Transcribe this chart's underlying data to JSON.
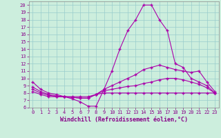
{
  "xlabel": "Windchill (Refroidissement éolien,°C)",
  "background_color": "#cceedd",
  "line_color": "#aa00aa",
  "grid_color": "#99cccc",
  "xlim": [
    -0.5,
    23.5
  ],
  "ylim": [
    6,
    20.5
  ],
  "xticks": [
    0,
    1,
    2,
    3,
    4,
    5,
    6,
    7,
    8,
    9,
    10,
    11,
    12,
    13,
    14,
    15,
    16,
    17,
    18,
    19,
    20,
    21,
    22,
    23
  ],
  "yticks": [
    6,
    7,
    8,
    9,
    10,
    11,
    12,
    13,
    14,
    15,
    16,
    17,
    18,
    19,
    20
  ],
  "line1_x": [
    0,
    1,
    2,
    3,
    4,
    5,
    6,
    7,
    8,
    9,
    10,
    11,
    12,
    13,
    14,
    15,
    16,
    17,
    18,
    19,
    20,
    21,
    22,
    23
  ],
  "line1_y": [
    9.5,
    8.5,
    8.0,
    7.8,
    7.5,
    7.2,
    6.8,
    6.2,
    6.2,
    8.5,
    11.0,
    14.0,
    16.5,
    18.0,
    20.0,
    20.0,
    18.0,
    16.5,
    12.0,
    11.5,
    10.0,
    9.5,
    9.0,
    8.0
  ],
  "line2_x": [
    0,
    1,
    2,
    3,
    4,
    5,
    6,
    7,
    8,
    9,
    10,
    11,
    12,
    13,
    14,
    15,
    16,
    17,
    18,
    19,
    20,
    21,
    22,
    23
  ],
  "line2_y": [
    8.8,
    8.2,
    7.8,
    7.6,
    7.5,
    7.4,
    7.3,
    7.3,
    7.8,
    8.5,
    9.0,
    9.5,
    10.0,
    10.5,
    11.2,
    11.5,
    11.8,
    11.5,
    11.2,
    11.0,
    10.8,
    11.0,
    9.5,
    8.2
  ],
  "line3_x": [
    0,
    1,
    2,
    3,
    4,
    5,
    6,
    7,
    8,
    9,
    10,
    11,
    12,
    13,
    14,
    15,
    16,
    17,
    18,
    19,
    20,
    21,
    22,
    23
  ],
  "line3_y": [
    8.5,
    8.0,
    7.7,
    7.5,
    7.5,
    7.4,
    7.3,
    7.3,
    7.8,
    8.3,
    8.5,
    8.7,
    8.9,
    9.0,
    9.3,
    9.5,
    9.8,
    10.0,
    10.0,
    9.8,
    9.5,
    9.2,
    8.7,
    8.0
  ],
  "line4_x": [
    0,
    1,
    2,
    3,
    4,
    5,
    6,
    7,
    8,
    9,
    10,
    11,
    12,
    13,
    14,
    15,
    16,
    17,
    18,
    19,
    20,
    21,
    22,
    23
  ],
  "line4_y": [
    8.2,
    7.8,
    7.5,
    7.5,
    7.5,
    7.5,
    7.5,
    7.5,
    7.8,
    8.0,
    8.0,
    8.0,
    8.0,
    8.0,
    8.0,
    8.0,
    8.0,
    8.0,
    8.0,
    8.0,
    8.0,
    8.0,
    8.0,
    8.0
  ],
  "marker": "+",
  "markersize": 3.0,
  "linewidth": 0.8,
  "tick_fontsize": 5.0,
  "xlabel_fontsize": 6.0,
  "tick_color": "#880088",
  "label_color": "#880088",
  "spine_color": "#888888"
}
